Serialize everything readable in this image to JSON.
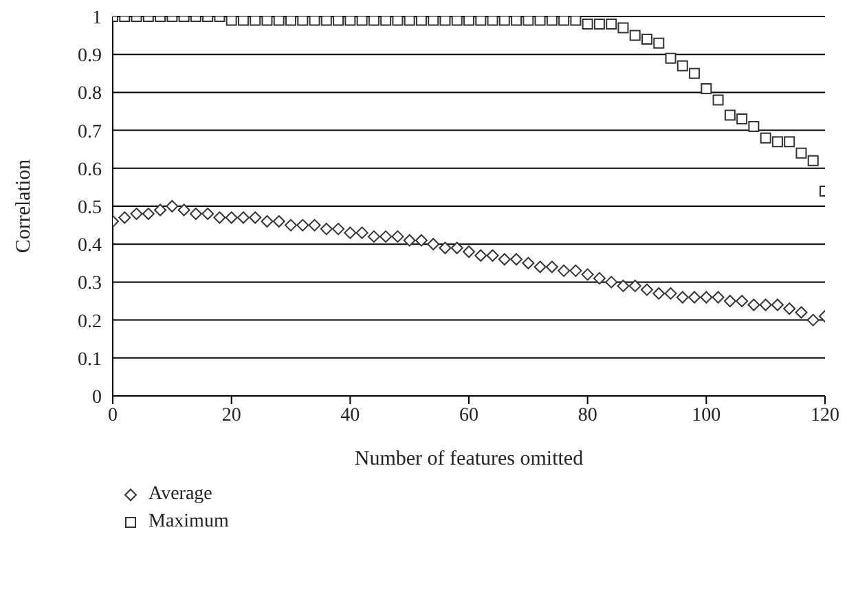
{
  "chart_data": {
    "type": "scatter",
    "xlabel": "Number of features omitted",
    "ylabel": "Correlation",
    "x": [
      0,
      2,
      4,
      6,
      8,
      10,
      12,
      14,
      16,
      18,
      20,
      22,
      24,
      26,
      28,
      30,
      32,
      34,
      36,
      38,
      40,
      42,
      44,
      46,
      48,
      50,
      52,
      54,
      56,
      58,
      60,
      62,
      64,
      66,
      68,
      70,
      72,
      74,
      76,
      78,
      80,
      82,
      84,
      86,
      88,
      90,
      92,
      94,
      96,
      98,
      100,
      102,
      104,
      106,
      108,
      110,
      112,
      114,
      116,
      118,
      120
    ],
    "series": [
      {
        "name": "Average",
        "color": "#333333",
        "marker": "diamond",
        "values": [
          0.46,
          0.47,
          0.48,
          0.48,
          0.49,
          0.5,
          0.49,
          0.48,
          0.48,
          0.47,
          0.47,
          0.47,
          0.47,
          0.46,
          0.46,
          0.45,
          0.45,
          0.45,
          0.44,
          0.44,
          0.43,
          0.43,
          0.42,
          0.42,
          0.42,
          0.41,
          0.41,
          0.4,
          0.39,
          0.39,
          0.38,
          0.37,
          0.37,
          0.36,
          0.36,
          0.35,
          0.34,
          0.34,
          0.33,
          0.33,
          0.32,
          0.31,
          0.3,
          0.29,
          0.29,
          0.28,
          0.27,
          0.27,
          0.26,
          0.26,
          0.26,
          0.26,
          0.25,
          0.25,
          0.24,
          0.24,
          0.24,
          0.23,
          0.22,
          0.2,
          0.21
        ]
      },
      {
        "name": "Maximum",
        "color": "#333333",
        "marker": "square",
        "values": [
          1.0,
          1.0,
          1.0,
          1.0,
          1.0,
          1.0,
          1.0,
          1.0,
          1.0,
          1.0,
          0.99,
          0.99,
          0.99,
          0.99,
          0.99,
          0.99,
          0.99,
          0.99,
          0.99,
          0.99,
          0.99,
          0.99,
          0.99,
          0.99,
          0.99,
          0.99,
          0.99,
          0.99,
          0.99,
          0.99,
          0.99,
          0.99,
          0.99,
          0.99,
          0.99,
          0.99,
          0.99,
          0.99,
          0.99,
          0.99,
          0.98,
          0.98,
          0.98,
          0.97,
          0.95,
          0.94,
          0.93,
          0.89,
          0.87,
          0.85,
          0.81,
          0.78,
          0.74,
          0.73,
          0.71,
          0.68,
          0.67,
          0.67,
          0.64,
          0.62,
          0.54
        ]
      }
    ],
    "xlim": [
      0,
      120
    ],
    "xticks": [
      0,
      20,
      40,
      60,
      80,
      100,
      120
    ],
    "ylim": [
      0,
      1
    ],
    "yticks": [
      0,
      0.1,
      0.2,
      0.3,
      0.4,
      0.5,
      0.6,
      0.7,
      0.8,
      0.9,
      1
    ],
    "grid": "y",
    "legend": "bottom left"
  }
}
